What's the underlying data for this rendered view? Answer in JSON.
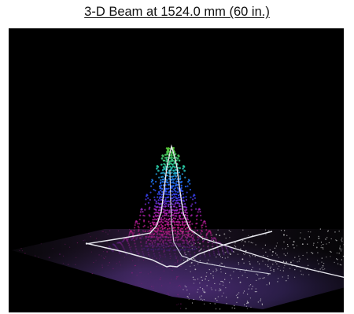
{
  "figure": {
    "title": "3-D Beam at 1524.0 mm (60 in.)"
  },
  "chart_data": {
    "type": "surface",
    "title": "3-D Beam at 1524.0 mm (60 in.)",
    "xlabel": "",
    "ylabel": "",
    "zlabel": "",
    "grid": false,
    "legend": "none",
    "surface": {
      "shape": "gaussian",
      "peak_relative_intensity": 1.0,
      "baseline_relative_intensity": 0.0,
      "symmetry": "radial"
    },
    "colors": {
      "background": "#000000",
      "floor": "#3c2a66",
      "floor_speckle": "#d7d7d7",
      "profile_lines": "#e7e7ee",
      "colormap": [
        {
          "level": 0.0,
          "color": "#3b1f6b"
        },
        {
          "level": 0.2,
          "color": "#d21b8f"
        },
        {
          "level": 0.38,
          "color": "#b727c8"
        },
        {
          "level": 0.52,
          "color": "#3f40ff"
        },
        {
          "level": 0.68,
          "color": "#1f7dff"
        },
        {
          "level": 0.82,
          "color": "#29cba5"
        },
        {
          "level": 1.0,
          "color": "#57c53a"
        }
      ]
    }
  }
}
